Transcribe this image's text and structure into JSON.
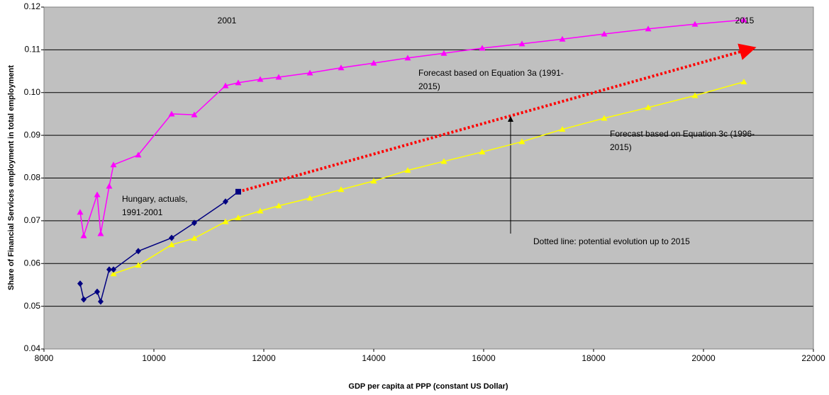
{
  "chart_data": {
    "type": "scatter-line",
    "xlabel": "GDP per capita at PPP (constant US Dollar)",
    "ylabel": "Share of Financial Services employment in total employment",
    "xlim": [
      8000,
      22000
    ],
    "xticks": [
      8000,
      10000,
      12000,
      14000,
      16000,
      18000,
      20000,
      22000
    ],
    "ylim": [
      0.04,
      0.12
    ],
    "yticks": [
      0.04,
      0.05,
      0.06,
      0.07,
      0.08,
      0.09,
      {
        "value": 0.1,
        "label": "0.10"
      },
      0.11,
      0.12
    ],
    "grid": true,
    "annotations": [
      [
        "2001"
      ],
      [
        "2015"
      ],
      [
        "Forecast based on Equation 3a (1991-",
        "2015)"
      ],
      [
        "Forecast based on Equation 3c (1996-",
        "2015)"
      ],
      [
        "Hungary, actuals,",
        "1991-2001"
      ],
      [
        "Dotted line: potential evolution up to 2015"
      ]
    ],
    "series": [
      {
        "color": "#ff00ff",
        "marker": "triangle",
        "x": [
          8658,
          8723,
          8968,
          9032,
          9187,
          9265,
          9716,
          10323,
          10735,
          11303,
          11535,
          11935,
          12271,
          12839,
          13406,
          14000,
          14619,
          15277,
          15974,
          16697,
          17432,
          18194,
          18994,
          19845,
          20735
        ],
        "values": [
          0.072,
          0.0665,
          0.0761,
          0.067,
          0.0781,
          0.0831,
          0.0854,
          0.095,
          0.0948,
          0.1016,
          0.1023,
          0.1031,
          0.1036,
          0.1046,
          0.1058,
          0.1069,
          0.1081,
          0.1092,
          0.1104,
          0.1114,
          0.1125,
          0.1137,
          0.1149,
          0.116,
          0.117
        ]
      },
      {
        "color": "#ffff00",
        "marker": "triangle",
        "x": [
          9265,
          9716,
          10323,
          10735,
          11303,
          11535,
          11935,
          12271,
          12839,
          13406,
          14000,
          14619,
          15277,
          15974,
          16697,
          17432,
          18194,
          18994,
          19845,
          20735
        ],
        "values": [
          0.0576,
          0.0596,
          0.0644,
          0.0659,
          0.0698,
          0.0707,
          0.0723,
          0.0735,
          0.0753,
          0.0773,
          0.0793,
          0.0818,
          0.0839,
          0.0861,
          0.0885,
          0.0914,
          0.094,
          0.0965,
          0.0993,
          0.1025
        ]
      },
      {
        "color": "#000080",
        "marker": "diamond",
        "x": [
          8658,
          8723,
          8968,
          9032,
          9187,
          9265,
          9716,
          10323,
          10735,
          11303,
          11535
        ],
        "values": [
          0.0553,
          0.0516,
          0.0534,
          0.0511,
          0.0586,
          0.0586,
          0.0629,
          0.066,
          0.0695,
          0.0745,
          0.0768
        ]
      }
    ]
  }
}
